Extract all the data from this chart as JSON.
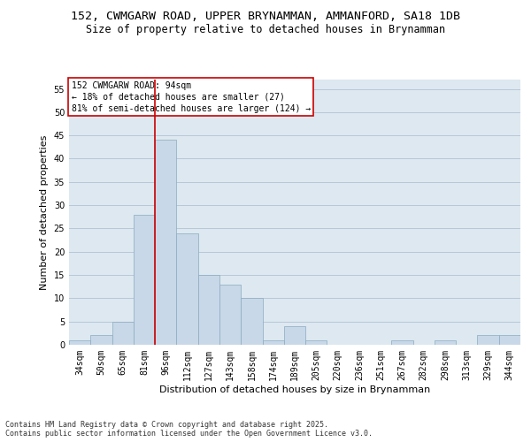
{
  "title_line1": "152, CWMGARW ROAD, UPPER BRYNAMMAN, AMMANFORD, SA18 1DB",
  "title_line2": "Size of property relative to detached houses in Brynamman",
  "xlabel": "Distribution of detached houses by size in Brynamman",
  "ylabel": "Number of detached properties",
  "categories": [
    "34sqm",
    "50sqm",
    "65sqm",
    "81sqm",
    "96sqm",
    "112sqm",
    "127sqm",
    "143sqm",
    "158sqm",
    "174sqm",
    "189sqm",
    "205sqm",
    "220sqm",
    "236sqm",
    "251sqm",
    "267sqm",
    "282sqm",
    "298sqm",
    "313sqm",
    "329sqm",
    "344sqm"
  ],
  "values": [
    1,
    2,
    5,
    28,
    44,
    24,
    15,
    13,
    10,
    1,
    4,
    1,
    0,
    0,
    0,
    1,
    0,
    1,
    0,
    2,
    2
  ],
  "bar_color": "#c8d8e8",
  "bar_edge_color": "#8aaabf",
  "grid_color": "#b8c8d8",
  "background_color": "#dde8f0",
  "annotation_text": "152 CWMGARW ROAD: 94sqm\n← 18% of detached houses are smaller (27)\n81% of semi-detached houses are larger (124) →",
  "annotation_box_color": "#ffffff",
  "annotation_box_edge": "#cc0000",
  "vline_color": "#cc0000",
  "ylim": [
    0,
    57
  ],
  "yticks": [
    0,
    5,
    10,
    15,
    20,
    25,
    30,
    35,
    40,
    45,
    50,
    55
  ],
  "footer": "Contains HM Land Registry data © Crown copyright and database right 2025.\nContains public sector information licensed under the Open Government Licence v3.0.",
  "title_fontsize": 9.5,
  "subtitle_fontsize": 8.5,
  "axis_label_fontsize": 8,
  "tick_fontsize": 7,
  "annotation_fontsize": 7,
  "footer_fontsize": 6
}
